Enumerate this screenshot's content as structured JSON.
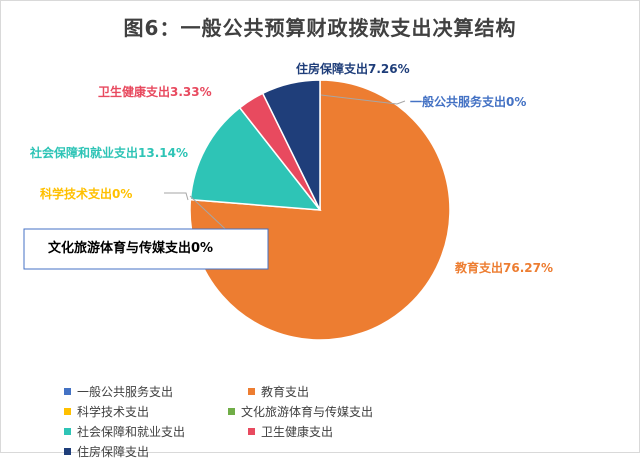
{
  "chart_data": {
    "type": "pie",
    "title": "图6：一般公共预算财政拨款支出决算结构",
    "categories": [
      "一般公共服务支出",
      "教育支出",
      "科学技术支出",
      "文化旅游体育与传媒支出",
      "社会保障和就业支出",
      "卫生健康支出",
      "住房保障支出"
    ],
    "values": [
      0,
      76.27,
      0,
      0,
      13.14,
      3.33,
      7.26
    ],
    "data_labels": [
      "一般公共服务支出0%",
      "教育支出76.27%",
      "科学技术支出0%",
      "文化旅游体育与传媒支出0%",
      "社会保障和就业支出13.14%",
      "卫生健康支出3.33%",
      "住房保障支出7.26%"
    ],
    "colors": [
      "#4472c4",
      "#ed7d31",
      "#ffc000",
      "#70ad47",
      "#2ec4b6",
      "#e84a5f",
      "#1f3e7a"
    ],
    "label_colors": [
      "#4472c4",
      "#ed7d31",
      "#ffc000",
      "#000000",
      "#2ec4b6",
      "#e84a5f",
      "#1f3e7a"
    ],
    "legend_position": "bottom"
  }
}
